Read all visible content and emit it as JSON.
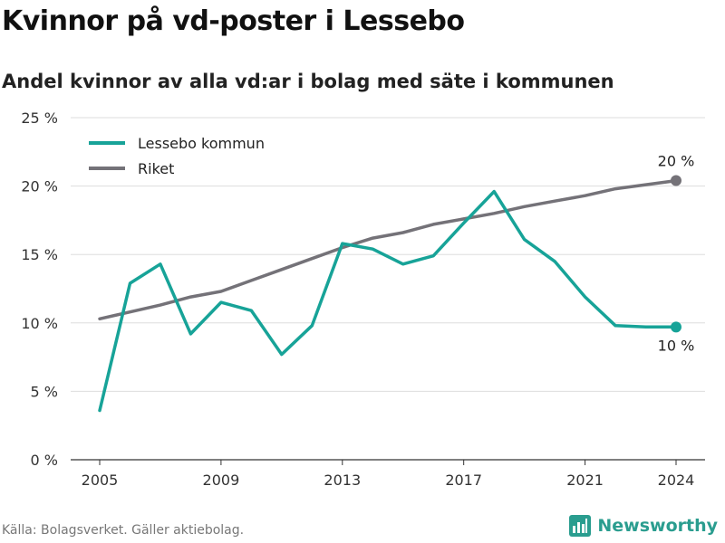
{
  "title": "Kvinnor på vd-poster i Lessebo",
  "subtitle": "Andel kvinnor av alla vd:ar i bolag med säte i kommunen",
  "source": "Källa: Bolagsverket. Gäller aktiebolag.",
  "brand": {
    "name": "Newsworthy",
    "icon": "newsworthy-logo-icon",
    "color": "#2a9d8f"
  },
  "chart_data": {
    "type": "line",
    "x": [
      2005,
      2006,
      2007,
      2008,
      2009,
      2010,
      2011,
      2012,
      2013,
      2014,
      2015,
      2016,
      2017,
      2018,
      2019,
      2020,
      2021,
      2022,
      2023,
      2024
    ],
    "xticks": [
      2005,
      2009,
      2013,
      2017,
      2021,
      2024
    ],
    "xtick_labels": [
      "2005",
      "2009",
      "2013",
      "2017",
      "2021",
      "2024"
    ],
    "yticks": [
      0,
      5,
      10,
      15,
      20,
      25
    ],
    "ytick_labels": [
      "0 %",
      "5 %",
      "10 %",
      "15 %",
      "20 %",
      "25 %"
    ],
    "ylim": [
      0,
      25
    ],
    "xlim": [
      2005,
      2024
    ],
    "grid": true,
    "legend_position": "top-left",
    "series": [
      {
        "name": "Lessebo kommun",
        "color": "#17a398",
        "values": [
          3.6,
          12.9,
          14.3,
          9.2,
          11.5,
          10.9,
          7.7,
          9.8,
          15.8,
          15.4,
          14.3,
          14.9,
          17.3,
          19.6,
          16.1,
          14.5,
          11.9,
          9.8,
          9.7,
          9.7
        ],
        "end_label": "10 %"
      },
      {
        "name": "Riket",
        "color": "#747278",
        "values": [
          10.3,
          10.8,
          11.3,
          11.9,
          12.3,
          13.1,
          13.9,
          14.7,
          15.5,
          16.2,
          16.6,
          17.2,
          17.6,
          18.0,
          18.5,
          18.9,
          19.3,
          19.8,
          20.1,
          20.4
        ],
        "end_label": "20 %"
      }
    ]
  }
}
